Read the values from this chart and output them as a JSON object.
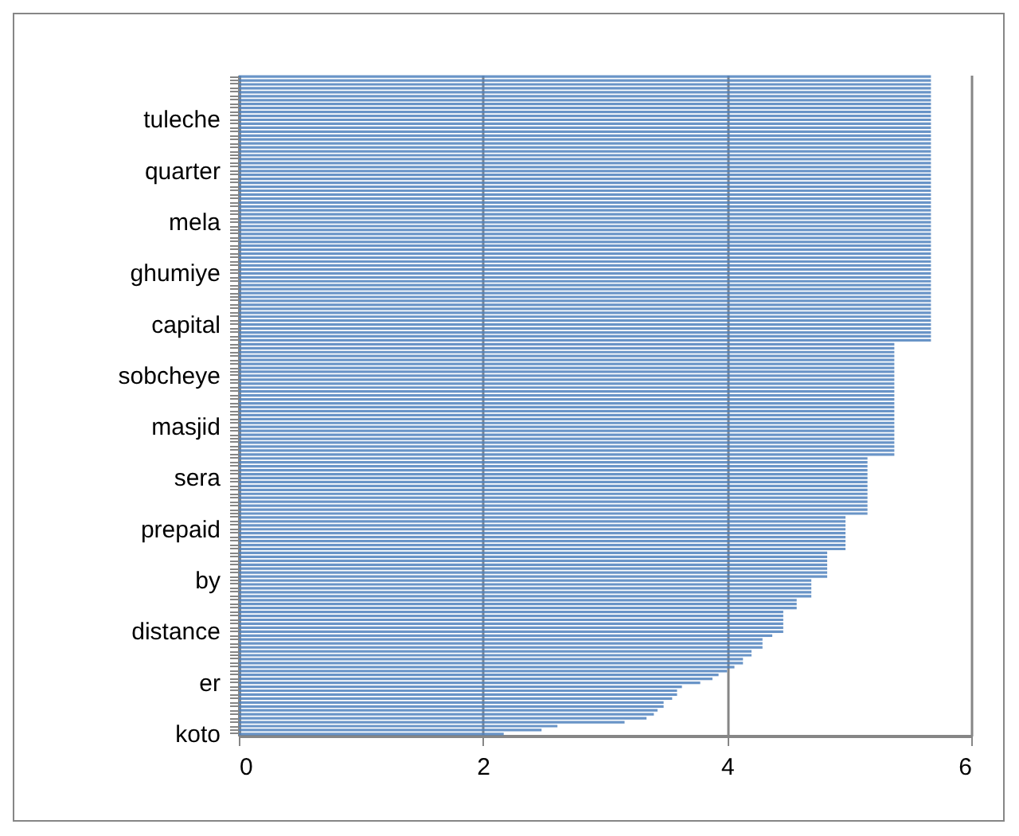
{
  "chart_data": {
    "type": "bar",
    "orientation": "horizontal",
    "categories": [
      null,
      null,
      null,
      null,
      null,
      null,
      null,
      null,
      null,
      null,
      null,
      "tuleche",
      null,
      null,
      null,
      null,
      null,
      null,
      null,
      null,
      null,
      null,
      null,
      null,
      "quarter",
      null,
      null,
      null,
      null,
      null,
      null,
      null,
      null,
      null,
      null,
      null,
      null,
      "mela",
      null,
      null,
      null,
      null,
      null,
      null,
      null,
      null,
      null,
      null,
      null,
      null,
      "ghumiye",
      null,
      null,
      null,
      null,
      null,
      null,
      null,
      null,
      null,
      null,
      null,
      null,
      "capital",
      null,
      null,
      null,
      null,
      null,
      null,
      null,
      null,
      null,
      null,
      null,
      null,
      "sobcheye",
      null,
      null,
      null,
      null,
      null,
      null,
      null,
      null,
      null,
      null,
      null,
      null,
      "masjid",
      null,
      null,
      null,
      null,
      null,
      null,
      null,
      null,
      null,
      null,
      null,
      null,
      "sera",
      null,
      null,
      null,
      null,
      null,
      null,
      null,
      null,
      null,
      null,
      null,
      null,
      "prepaid",
      null,
      null,
      null,
      null,
      null,
      null,
      null,
      null,
      null,
      null,
      null,
      null,
      "by",
      null,
      null,
      null,
      null,
      null,
      null,
      null,
      null,
      null,
      null,
      null,
      null,
      "distance",
      null,
      null,
      null,
      null,
      null,
      null,
      null,
      null,
      null,
      null,
      null,
      null,
      "er",
      null,
      null,
      null,
      null,
      null,
      null,
      null,
      null,
      null,
      null,
      null,
      null,
      "koto"
    ],
    "values": [
      5.67,
      5.67,
      5.67,
      5.67,
      5.67,
      5.67,
      5.67,
      5.67,
      5.67,
      5.67,
      5.67,
      5.67,
      5.67,
      5.67,
      5.67,
      5.67,
      5.67,
      5.67,
      5.67,
      5.67,
      5.67,
      5.67,
      5.67,
      5.67,
      5.67,
      5.67,
      5.67,
      5.67,
      5.67,
      5.67,
      5.67,
      5.67,
      5.67,
      5.67,
      5.67,
      5.67,
      5.67,
      5.67,
      5.67,
      5.67,
      5.67,
      5.67,
      5.67,
      5.67,
      5.67,
      5.67,
      5.67,
      5.67,
      5.67,
      5.67,
      5.67,
      5.67,
      5.67,
      5.67,
      5.67,
      5.67,
      5.67,
      5.67,
      5.67,
      5.67,
      5.67,
      5.67,
      5.67,
      5.67,
      5.67,
      5.67,
      5.67,
      5.67,
      5.37,
      5.37,
      5.37,
      5.37,
      5.37,
      5.37,
      5.37,
      5.37,
      5.37,
      5.37,
      5.37,
      5.37,
      5.37,
      5.37,
      5.37,
      5.37,
      5.37,
      5.37,
      5.37,
      5.37,
      5.37,
      5.37,
      5.37,
      5.37,
      5.37,
      5.37,
      5.37,
      5.37,
      5.37,
      5.15,
      5.15,
      5.15,
      5.15,
      5.15,
      5.15,
      5.15,
      5.15,
      5.15,
      5.15,
      5.15,
      5.15,
      5.15,
      5.15,
      5.15,
      4.97,
      4.97,
      4.97,
      4.97,
      4.97,
      4.97,
      4.97,
      4.97,
      4.97,
      4.82,
      4.82,
      4.82,
      4.82,
      4.82,
      4.82,
      4.82,
      4.69,
      4.69,
      4.69,
      4.69,
      4.69,
      4.57,
      4.57,
      4.57,
      4.46,
      4.46,
      4.46,
      4.46,
      4.46,
      4.46,
      4.37,
      4.29,
      4.29,
      4.29,
      4.2,
      4.2,
      4.13,
      4.13,
      4.06,
      4.0,
      3.93,
      3.88,
      3.78,
      3.63,
      3.59,
      3.59,
      3.55,
      3.48,
      3.48,
      3.43,
      3.4,
      3.34,
      3.16,
      2.61,
      2.48,
      2.17
    ],
    "color": "#4f81bd",
    "xlim": [
      0,
      6
    ],
    "xticks": [
      0,
      2,
      4,
      6
    ],
    "grid": "x"
  }
}
